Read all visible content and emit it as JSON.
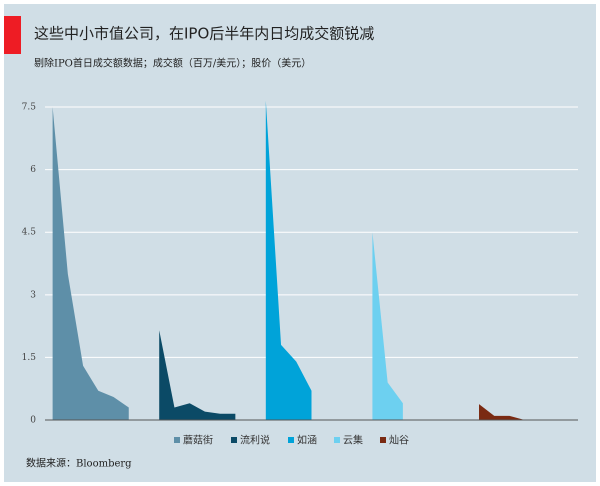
{
  "chart_data": {
    "type": "area",
    "title": "这些中小市值公司，在IPO后半年内日均成交额锐减",
    "subtitle": "剔除IPO首日成交额数据；成交额（百万/美元）；股价（美元）",
    "source": "数据来源：Bloomberg",
    "series": [
      {
        "name": "蘑菇街",
        "color": "#5e8fa8",
        "x": [
          0,
          1,
          2,
          3,
          4,
          5
        ],
        "values": [
          7.5,
          3.5,
          1.3,
          0.7,
          0.55,
          0.3
        ]
      },
      {
        "name": "流利说",
        "color": "#0b4a66",
        "x": [
          7,
          8,
          9,
          10,
          11,
          12
        ],
        "values": [
          2.15,
          0.3,
          0.4,
          0.2,
          0.15,
          0.15
        ]
      },
      {
        "name": "如涵",
        "color": "#00a3d9",
        "x": [
          14,
          15,
          16,
          17
        ],
        "values": [
          7.65,
          1.8,
          1.4,
          0.7
        ]
      },
      {
        "name": "云集",
        "color": "#6dd0f0",
        "x": [
          21,
          22,
          23
        ],
        "values": [
          4.5,
          0.9,
          0.4
        ]
      },
      {
        "name": "灿谷",
        "color": "#7a2a12",
        "x": [
          28,
          29,
          30,
          31
        ],
        "values": [
          0.38,
          0.1,
          0.1,
          0
        ]
      }
    ],
    "xlim": [
      -0.5,
      34.5
    ],
    "ylim": [
      0,
      7.7
    ],
    "yticks": [
      0,
      1.5,
      3,
      4.5,
      6,
      7.5
    ],
    "grid": true
  }
}
